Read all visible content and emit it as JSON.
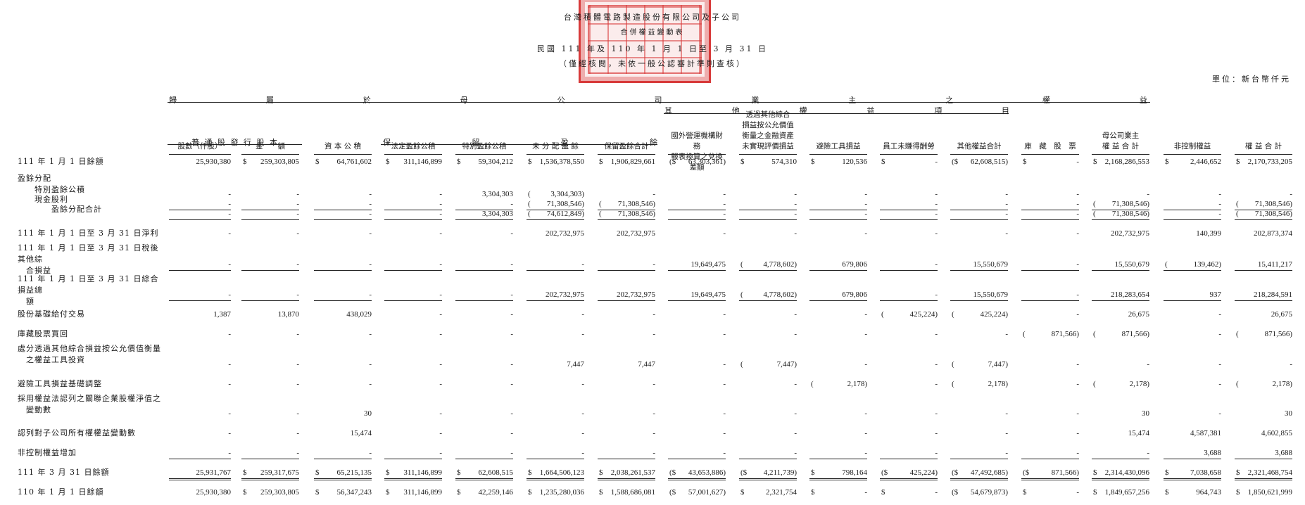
{
  "header": {
    "company": "台灣積體電路製造股份有限公司及子公司",
    "statement": "合併權益變動表",
    "period": "民國 111 年及 110 年 1 月 1 日至 3 月 31 日",
    "note": "（僅經核閱，未依一般公認審計準則查核）",
    "unit": "單位：新台幣仟元"
  },
  "bands": {
    "parent": [
      "歸",
      "屬",
      "於",
      "母",
      "公",
      "司",
      "業",
      "主",
      "之",
      "權",
      "益"
    ],
    "other": [
      "其",
      "他",
      "權",
      "益",
      "項",
      "目"
    ],
    "retained": [
      "保",
      "留",
      "盈",
      "餘"
    ],
    "share": "普 通 股 發 行 股 本"
  },
  "columns": [
    "股數（仟股）",
    "金　　額",
    "資 本 公 積",
    "法定盈餘公積",
    "特別盈餘公積",
    "未 分 配 盈 餘",
    "保留盈餘合計",
    "國外營運機構財務\n報表換算之兌換差額",
    "透過其他綜合\n損益按公允價值\n衡量之金融資產\n未實現評價損益",
    "避險工具損益",
    "員工未賺得酬勞",
    "其他權益合計",
    "庫　藏　股　票",
    "母公司業主\n權 益 合 計",
    "非控制權益",
    "權 益 合 計"
  ],
  "rows": [
    {
      "label": "111 年 1 月 1 日餘額",
      "style": "",
      "cells": [
        "25,930,380",
        "$|259,303,805",
        "$|64,761,602",
        "$|311,146,899",
        "$|59,304,212",
        "$|1,536,378,550",
        "$|1,906,829,661",
        "($|63,303,361)",
        "$|574,310",
        "$|120,536",
        "$|-",
        "($|62,608,515)",
        "$|-",
        "$|2,168,286,553",
        "$|2,446,652",
        "$|2,170,733,205"
      ]
    },
    {
      "label": "盈餘分配",
      "style": "",
      "cells": []
    },
    {
      "label": "特別盈餘公積",
      "style": "i1",
      "cells": [
        "-",
        "-",
        "-",
        "-",
        "3,304,303",
        "(|3,304,303)",
        "-",
        "-",
        "-",
        "-",
        "-",
        "-",
        "-",
        "-",
        "-",
        "-"
      ]
    },
    {
      "label": "現金股利",
      "style": "i1",
      "cells": [
        "-",
        "-",
        "-",
        "-",
        "-",
        "(|71,308,546)",
        "(|71,308,546)",
        "-",
        "-",
        "-",
        "-",
        "-",
        "-",
        "(|71,308,546)",
        "-",
        "(|71,308,546)"
      ]
    },
    {
      "label": "盈餘分配合計",
      "style": "i2",
      "cells": [
        "-",
        "-",
        "-",
        "-",
        "3,304,303",
        "(|74,612,849)",
        "(|71,308,546)",
        "-",
        "-",
        "-",
        "-",
        "-",
        "-",
        "(|71,308,546)",
        "-",
        "(|71,308,546)"
      ]
    },
    {
      "label": "111 年 1 月 1 日至 3 月 31 日淨利",
      "style": "",
      "cells": [
        "-",
        "-",
        "-",
        "-",
        "-",
        "202,732,975",
        "202,732,975",
        "-",
        "-",
        "-",
        "-",
        "-",
        "-",
        "202,732,975",
        "140,399",
        "202,873,374"
      ]
    },
    {
      "label": "111 年 1 月 1 日至 3 月 31 日稅後其他綜\n　合損益",
      "style": "",
      "cells": [
        "-",
        "-",
        "-",
        "-",
        "-",
        "-",
        "-",
        "19,649,475",
        "(|4,778,602)",
        "679,806",
        "-",
        "15,550,679",
        "-",
        "15,550,679",
        "(|139,462)",
        "15,411,217"
      ]
    },
    {
      "label": "111 年 1 月 1 日至 3 月 31 日綜合損益總\n　額",
      "style": "",
      "cells": [
        "-",
        "-",
        "-",
        "-",
        "-",
        "202,732,975",
        "202,732,975",
        "19,649,475",
        "(|4,778,602)",
        "679,806",
        "-",
        "15,550,679",
        "-",
        "218,283,654",
        "937",
        "218,284,591"
      ]
    },
    {
      "label": "股份基礎給付交易",
      "style": "",
      "cells": [
        "1,387",
        "13,870",
        "438,029",
        "-",
        "-",
        "-",
        "-",
        "-",
        "-",
        "-",
        "(|425,224)",
        "(|425,224)",
        "-",
        "26,675",
        "-",
        "26,675"
      ]
    },
    {
      "label": "庫藏股票買回",
      "style": "",
      "cells": [
        "-",
        "-",
        "-",
        "-",
        "-",
        "-",
        "-",
        "-",
        "-",
        "-",
        "-",
        "-",
        "(|871,566)",
        "(|871,566)",
        "-",
        "(|871,566)"
      ]
    },
    {
      "label": "處分透過其他綜合損益按公允價值衡量\n　之權益工具投資",
      "style": "",
      "cells": [
        "-",
        "-",
        "-",
        "-",
        "-",
        "7,447",
        "7,447",
        "-",
        "(|7,447)",
        "-",
        "-",
        "(|7,447)",
        "-",
        "-",
        "-",
        "-"
      ]
    },
    {
      "label": "避險工具損益基礎調整",
      "style": "",
      "cells": [
        "-",
        "-",
        "-",
        "-",
        "-",
        "-",
        "-",
        "-",
        "-",
        "(|2,178)",
        "-",
        "(|2,178)",
        "-",
        "(|2,178)",
        "-",
        "(|2,178)"
      ]
    },
    {
      "label": "採用權益法認列之關聯企業股權淨值之\n　變動數",
      "style": "",
      "cells": [
        "-",
        "-",
        "30",
        "-",
        "-",
        "-",
        "-",
        "-",
        "-",
        "-",
        "-",
        "-",
        "-",
        "30",
        "-",
        "30"
      ]
    },
    {
      "label": "認列對子公司所有權權益變動數",
      "style": "",
      "cells": [
        "-",
        "-",
        "15,474",
        "-",
        "-",
        "-",
        "-",
        "-",
        "-",
        "-",
        "-",
        "-",
        "-",
        "15,474",
        "4,587,381",
        "4,602,855"
      ]
    },
    {
      "label": "非控制權益增加",
      "style": "",
      "cells": [
        "-",
        "-",
        "-",
        "-",
        "-",
        "-",
        "-",
        "-",
        "-",
        "-",
        "-",
        "-",
        "-",
        "-",
        "3,688",
        "3,688"
      ]
    },
    {
      "label": "111 年 3 月 31 日餘額",
      "style": "",
      "cells": [
        "25,931,767",
        "$|259,317,675",
        "$|65,215,135",
        "$|311,146,899",
        "$|62,608,515",
        "$|1,664,506,123",
        "$|2,038,261,537",
        "($|43,653,886)",
        "($|4,211,739)",
        "$|798,164",
        "($|425,224)",
        "($|47,492,685)",
        "($|871,566)",
        "$|2,314,430,096",
        "$|7,038,658",
        "$|2,321,468,754"
      ]
    },
    {
      "label": "110 年 1 月 1 日餘額",
      "style": "",
      "cells": [
        "25,930,380",
        "$|259,303,805",
        "$|56,347,243",
        "$|311,146,899",
        "$|42,259,146",
        "$|1,235,280,036",
        "$|1,588,686,081",
        "($|57,001,627)",
        "$|2,321,754",
        "$|-",
        "$|-",
        "($|54,679,873)",
        "$|-",
        "$|1,849,657,256",
        "$|964,743",
        "$|1,850,621,999"
      ]
    }
  ]
}
